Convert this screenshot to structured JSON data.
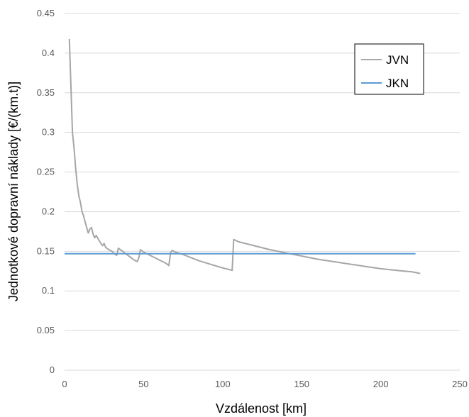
{
  "chart_data": {
    "type": "line",
    "xlabel": "Vzdálenost [km]",
    "ylabel": "Jednotkové dopravní náklady [€/(km.t)]",
    "xlim": [
      0,
      250
    ],
    "ylim": [
      0,
      0.45
    ],
    "x_ticks": [
      0,
      50,
      100,
      150,
      200,
      250
    ],
    "y_ticks": [
      0,
      0.05,
      0.1,
      0.15,
      0.2,
      0.25,
      0.3,
      0.35,
      0.4,
      0.45
    ],
    "x_tick_labels": [
      "0",
      "50",
      "100",
      "150",
      "200",
      "250"
    ],
    "y_tick_labels": [
      "0",
      "0.05",
      "0.1",
      "0.15",
      "0.2",
      "0.25",
      "0.3",
      "0.35",
      "0.4",
      "0.45"
    ],
    "grid": {
      "horizontal": true,
      "vertical": false
    },
    "legend_position": "top-right",
    "series": [
      {
        "name": "JVN",
        "color": "#a6a6a6",
        "x": [
          3,
          4,
          5,
          6,
          7,
          8,
          9,
          10,
          11,
          12,
          13,
          14,
          15,
          16,
          17,
          18,
          19,
          20,
          22,
          24,
          25,
          26,
          28,
          30,
          32,
          33,
          34,
          36,
          38,
          40,
          42,
          44,
          46,
          47,
          48,
          50,
          55,
          60,
          64,
          66,
          67,
          68,
          70,
          75,
          80,
          85,
          90,
          95,
          100,
          104,
          106,
          107,
          110,
          120,
          130,
          140,
          150,
          160,
          170,
          180,
          190,
          200,
          210,
          220,
          225
        ],
        "y": [
          0.418,
          0.36,
          0.3,
          0.28,
          0.255,
          0.235,
          0.22,
          0.212,
          0.2,
          0.195,
          0.187,
          0.18,
          0.173,
          0.178,
          0.18,
          0.172,
          0.167,
          0.17,
          0.163,
          0.157,
          0.16,
          0.155,
          0.152,
          0.15,
          0.146,
          0.145,
          0.154,
          0.151,
          0.148,
          0.145,
          0.142,
          0.139,
          0.137,
          0.142,
          0.152,
          0.149,
          0.144,
          0.139,
          0.135,
          0.132,
          0.148,
          0.151,
          0.149,
          0.146,
          0.142,
          0.138,
          0.135,
          0.132,
          0.129,
          0.127,
          0.126,
          0.165,
          0.162,
          0.157,
          0.152,
          0.148,
          0.144,
          0.14,
          0.137,
          0.134,
          0.131,
          0.128,
          0.126,
          0.124,
          0.122
        ]
      },
      {
        "name": "JKN",
        "color": "#5b9bd5",
        "x": [
          0,
          222
        ],
        "y": [
          0.147,
          0.147
        ]
      }
    ]
  }
}
